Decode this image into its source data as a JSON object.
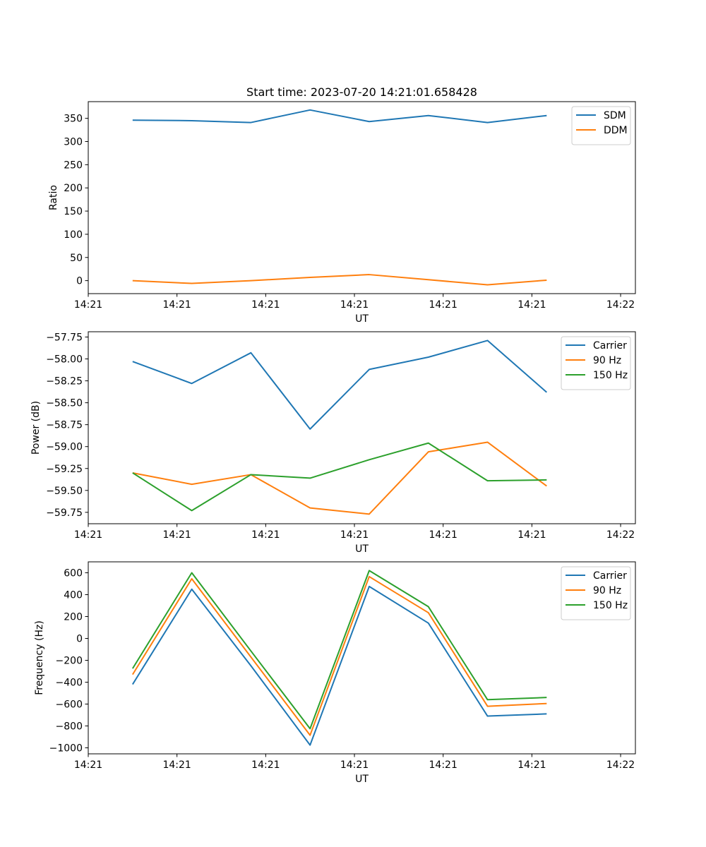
{
  "colors": {
    "blue": "#1f77b4",
    "orange": "#ff7f0e",
    "green": "#2ca02c"
  },
  "chart_data": [
    {
      "type": "line",
      "title": "Start time: 2023-07-20 14:21:01.658428",
      "xlabel": "UT",
      "ylabel": "Ratio",
      "xlim": [
        0,
        9.25
      ],
      "ylim": [
        -28,
        386
      ],
      "x": [
        0.75,
        1.75,
        2.75,
        3.75,
        4.75,
        5.75,
        6.75,
        7.75
      ],
      "xticks": [
        {
          "value": 0,
          "label": "14:21"
        },
        {
          "value": 1.5,
          "label": "14:21"
        },
        {
          "value": 3,
          "label": "14:21"
        },
        {
          "value": 4.5,
          "label": "14:21"
        },
        {
          "value": 6,
          "label": "14:21"
        },
        {
          "value": 7.5,
          "label": "14:21"
        },
        {
          "value": 9,
          "label": "14:22"
        }
      ],
      "yticks": [
        {
          "value": 0,
          "label": "0"
        },
        {
          "value": 50,
          "label": "50"
        },
        {
          "value": 100,
          "label": "100"
        },
        {
          "value": 150,
          "label": "150"
        },
        {
          "value": 200,
          "label": "200"
        },
        {
          "value": 250,
          "label": "250"
        },
        {
          "value": 300,
          "label": "300"
        },
        {
          "value": 350,
          "label": "350"
        }
      ],
      "legend_position": "top-right",
      "series": [
        {
          "name": "SDM",
          "color": "#1f77b4",
          "values": [
            346,
            345,
            341,
            368,
            343,
            356,
            341,
            356
          ]
        },
        {
          "name": "DDM",
          "color": "#ff7f0e",
          "values": [
            0,
            -6,
            0,
            7,
            13,
            2,
            -9,
            1
          ]
        }
      ]
    },
    {
      "type": "line",
      "title": "",
      "xlabel": "UT",
      "ylabel": "Power (dB)",
      "xlim": [
        0,
        9.25
      ],
      "ylim": [
        -59.88,
        -57.69
      ],
      "x": [
        0.75,
        1.75,
        2.75,
        3.75,
        4.75,
        5.75,
        6.75,
        7.75
      ],
      "xticks": [
        {
          "value": 0,
          "label": "14:21"
        },
        {
          "value": 1.5,
          "label": "14:21"
        },
        {
          "value": 3,
          "label": "14:21"
        },
        {
          "value": 4.5,
          "label": "14:21"
        },
        {
          "value": 6,
          "label": "14:21"
        },
        {
          "value": 7.5,
          "label": "14:21"
        },
        {
          "value": 9,
          "label": "14:22"
        }
      ],
      "yticks": [
        {
          "value": -57.75,
          "label": "−57.75"
        },
        {
          "value": -58.0,
          "label": "−58.00"
        },
        {
          "value": -58.25,
          "label": "−58.25"
        },
        {
          "value": -58.5,
          "label": "−58.50"
        },
        {
          "value": -58.75,
          "label": "−58.75"
        },
        {
          "value": -59.0,
          "label": "−59.00"
        },
        {
          "value": -59.25,
          "label": "−59.25"
        },
        {
          "value": -59.5,
          "label": "−59.50"
        },
        {
          "value": -59.75,
          "label": "−59.75"
        }
      ],
      "legend_position": "top-right",
      "series": [
        {
          "name": "Carrier",
          "color": "#1f77b4",
          "values": [
            -58.03,
            -58.28,
            -57.93,
            -58.8,
            -58.12,
            -57.98,
            -57.79,
            -58.38
          ]
        },
        {
          "name": "90 Hz",
          "color": "#ff7f0e",
          "values": [
            -59.3,
            -59.43,
            -59.32,
            -59.7,
            -59.77,
            -59.06,
            -58.95,
            -59.45
          ]
        },
        {
          "name": "150 Hz",
          "color": "#2ca02c",
          "values": [
            -59.3,
            -59.73,
            -59.32,
            -59.36,
            -59.15,
            -58.96,
            -59.39,
            -59.38
          ]
        }
      ]
    },
    {
      "type": "line",
      "title": "",
      "xlabel": "UT",
      "ylabel": "Frequency (Hz)",
      "xlim": [
        0,
        9.25
      ],
      "ylim": [
        -1055,
        700
      ],
      "x": [
        0.75,
        1.75,
        2.75,
        3.75,
        4.75,
        5.75,
        6.75,
        7.75
      ],
      "xticks": [
        {
          "value": 0,
          "label": "14:21"
        },
        {
          "value": 1.5,
          "label": "14:21"
        },
        {
          "value": 3,
          "label": "14:21"
        },
        {
          "value": 4.5,
          "label": "14:21"
        },
        {
          "value": 6,
          "label": "14:21"
        },
        {
          "value": 7.5,
          "label": "14:21"
        },
        {
          "value": 9,
          "label": "14:22"
        }
      ],
      "yticks": [
        {
          "value": 600,
          "label": "600"
        },
        {
          "value": 400,
          "label": "400"
        },
        {
          "value": 200,
          "label": "200"
        },
        {
          "value": 0,
          "label": "0"
        },
        {
          "value": -200,
          "label": "−200"
        },
        {
          "value": -400,
          "label": "−400"
        },
        {
          "value": -600,
          "label": "−600"
        },
        {
          "value": -800,
          "label": "−800"
        },
        {
          "value": -1000,
          "label": "−1000"
        }
      ],
      "legend_position": "top-right",
      "series": [
        {
          "name": "Carrier",
          "color": "#1f77b4",
          "values": [
            -420,
            450,
            -250,
            -975,
            475,
            140,
            -710,
            -690
          ]
        },
        {
          "name": "90 Hz",
          "color": "#ff7f0e",
          "values": [
            -330,
            545,
            -170,
            -885,
            565,
            235,
            -620,
            -595
          ]
        },
        {
          "name": "150 Hz",
          "color": "#2ca02c",
          "values": [
            -275,
            600,
            -115,
            -825,
            620,
            290,
            -560,
            -540
          ]
        }
      ]
    }
  ]
}
